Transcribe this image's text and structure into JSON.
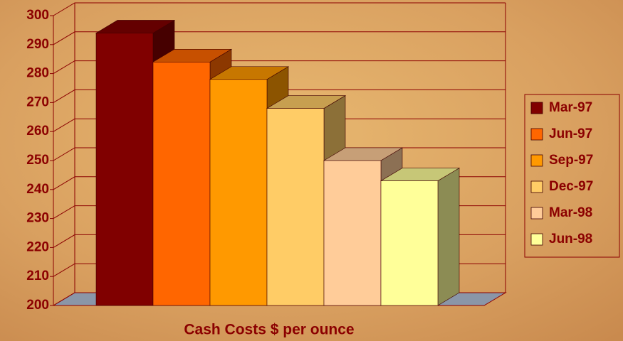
{
  "chart_data": {
    "type": "bar",
    "x_label": "Cash Costs $ per ounce",
    "categories": [
      "Mar-97",
      "Jun-97",
      "Sep-97",
      "Dec-97",
      "Mar-98",
      "Jun-98"
    ],
    "values": [
      294,
      284,
      278,
      268,
      250,
      243
    ],
    "colors": [
      "#800000",
      "#ff6600",
      "#ff9900",
      "#ffcc66",
      "#ffcc99",
      "#ffff99"
    ],
    "ylim": [
      200,
      300
    ],
    "yticks": [
      200,
      210,
      220,
      230,
      240,
      250,
      260,
      270,
      280,
      290,
      300
    ],
    "grid": true,
    "legend": "right"
  }
}
